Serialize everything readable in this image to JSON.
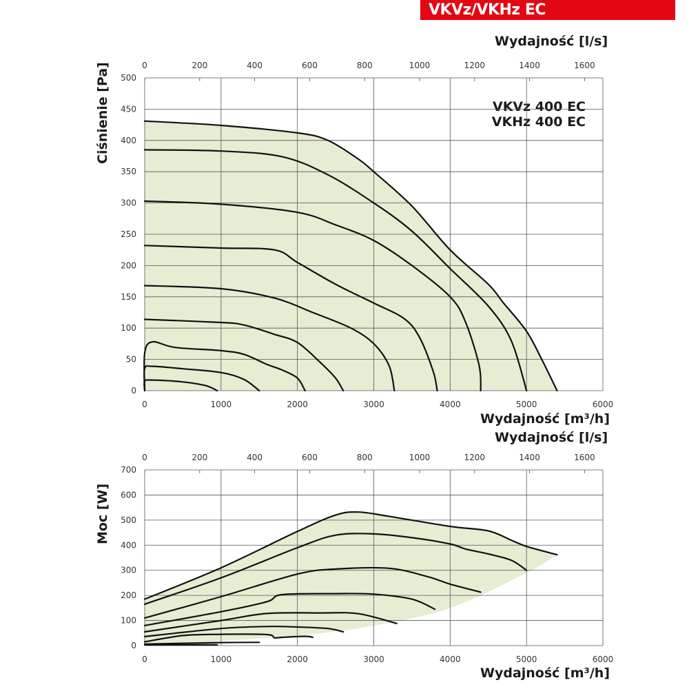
{
  "header": {
    "title": "VKVz/VKHz EC",
    "color": "#e30613"
  },
  "chart_data": [
    {
      "type": "line",
      "title": "VKVz 400 EC / VKHz 400 EC",
      "legend": [
        "VKVz 400 EC",
        "VKHz 400 EC"
      ],
      "xlabel": "Wydajność [m³/h]",
      "x2label": "Wydajność [l/s]",
      "ylabel": "Ciśnienie [Pa]",
      "xlim": [
        0,
        6000
      ],
      "ylim": [
        0,
        500
      ],
      "xticks": [
        0,
        1000,
        2000,
        3000,
        4000,
        5000,
        6000
      ],
      "x2ticks": [
        0,
        200,
        400,
        600,
        800,
        1000,
        1200,
        1400,
        1600
      ],
      "yticks": [
        0,
        50,
        100,
        150,
        200,
        250,
        300,
        350,
        400,
        450,
        500
      ],
      "grid": true,
      "fill_color": "#e5edd3",
      "series": [
        {
          "name": "curve-1",
          "points": [
            [
              0,
              431
            ],
            [
              1000,
              424
            ],
            [
              2000,
              412
            ],
            [
              2400,
              400
            ],
            [
              2800,
              370
            ],
            [
              3000,
              350
            ],
            [
              3500,
              295
            ],
            [
              4000,
              225
            ],
            [
              4500,
              170
            ],
            [
              4700,
              140
            ],
            [
              5000,
              95
            ],
            [
              5200,
              50
            ],
            [
              5400,
              0
            ]
          ]
        },
        {
          "name": "curve-2",
          "points": [
            [
              0,
              385
            ],
            [
              1000,
              383
            ],
            [
              1800,
              374
            ],
            [
              2400,
              345
            ],
            [
              3000,
              300
            ],
            [
              3500,
              255
            ],
            [
              4000,
              195
            ],
            [
              4500,
              135
            ],
            [
              4800,
              80
            ],
            [
              5000,
              0
            ]
          ]
        },
        {
          "name": "curve-3",
          "points": [
            [
              0,
              303
            ],
            [
              1000,
              298
            ],
            [
              2000,
              285
            ],
            [
              2500,
              265
            ],
            [
              3000,
              240
            ],
            [
              3500,
              200
            ],
            [
              4000,
              150
            ],
            [
              4200,
              110
            ],
            [
              4380,
              40
            ],
            [
              4400,
              0
            ]
          ]
        },
        {
          "name": "curve-4",
          "points": [
            [
              0,
              232
            ],
            [
              1000,
              228
            ],
            [
              1700,
              225
            ],
            [
              2000,
              205
            ],
            [
              2500,
              170
            ],
            [
              3000,
              140
            ],
            [
              3400,
              115
            ],
            [
              3600,
              85
            ],
            [
              3780,
              30
            ],
            [
              3830,
              0
            ]
          ]
        },
        {
          "name": "curve-5",
          "points": [
            [
              0,
              168
            ],
            [
              1000,
              163
            ],
            [
              1700,
              148
            ],
            [
              2200,
              125
            ],
            [
              2700,
              100
            ],
            [
              3000,
              75
            ],
            [
              3200,
              40
            ],
            [
              3270,
              0
            ]
          ]
        },
        {
          "name": "curve-6",
          "points": [
            [
              0,
              114
            ],
            [
              1000,
              109
            ],
            [
              1300,
              105
            ],
            [
              1700,
              90
            ],
            [
              2000,
              77
            ],
            [
              2300,
              45
            ],
            [
              2500,
              20
            ],
            [
              2600,
              0
            ]
          ]
        },
        {
          "name": "curve-7",
          "points": [
            [
              0,
              0
            ],
            [
              0,
              60
            ],
            [
              100,
              78
            ],
            [
              400,
              69
            ],
            [
              1000,
              64
            ],
            [
              1300,
              58
            ],
            [
              1600,
              42
            ],
            [
              1800,
              33
            ],
            [
              2000,
              20
            ],
            [
              2100,
              0
            ]
          ]
        },
        {
          "name": "curve-8",
          "points": [
            [
              0,
              0
            ],
            [
              0,
              35
            ],
            [
              100,
              39
            ],
            [
              500,
              35
            ],
            [
              1000,
              29
            ],
            [
              1300,
              18
            ],
            [
              1500,
              0
            ]
          ]
        },
        {
          "name": "curve-9",
          "points": [
            [
              0,
              0
            ],
            [
              0,
              15
            ],
            [
              100,
              17
            ],
            [
              500,
              14
            ],
            [
              800,
              8
            ],
            [
              950,
              0
            ]
          ]
        }
      ]
    },
    {
      "type": "line",
      "title": "",
      "xlabel": "Wydajność [m³/h]",
      "x2label": "Wydajność [l/s]",
      "ylabel": "Moc [W]",
      "xlim": [
        0,
        6000
      ],
      "ylim": [
        0,
        700
      ],
      "xticks": [
        0,
        1000,
        2000,
        3000,
        4000,
        5000,
        6000
      ],
      "x2ticks": [
        0,
        200,
        400,
        600,
        800,
        1000,
        1200,
        1400,
        1600
      ],
      "yticks": [
        0,
        100,
        200,
        300,
        400,
        500,
        600,
        700
      ],
      "grid": true,
      "fill_color": "#e5edd3",
      "series": [
        {
          "name": "power-1",
          "points": [
            [
              0,
              185
            ],
            [
              1000,
              310
            ],
            [
              2000,
              455
            ],
            [
              2500,
              520
            ],
            [
              2800,
              532
            ],
            [
              3200,
              515
            ],
            [
              4000,
              475
            ],
            [
              4500,
              457
            ],
            [
              4800,
              420
            ],
            [
              5000,
              395
            ],
            [
              5400,
              362
            ]
          ]
        },
        {
          "name": "power-2",
          "points": [
            [
              0,
              165
            ],
            [
              1000,
              270
            ],
            [
              2000,
              390
            ],
            [
              2500,
              440
            ],
            [
              3000,
              445
            ],
            [
              3500,
              430
            ],
            [
              4000,
              405
            ],
            [
              4200,
              385
            ],
            [
              4500,
              365
            ],
            [
              4800,
              340
            ],
            [
              5000,
              300
            ]
          ]
        },
        {
          "name": "power-3",
          "points": [
            [
              0,
              110
            ],
            [
              1000,
              195
            ],
            [
              2000,
              285
            ],
            [
              2500,
              305
            ],
            [
              3200,
              308
            ],
            [
              3700,
              275
            ],
            [
              4000,
              245
            ],
            [
              4400,
              213
            ]
          ]
        },
        {
          "name": "power-4",
          "points": [
            [
              0,
              80
            ],
            [
              1000,
              135
            ],
            [
              1600,
              175
            ],
            [
              1800,
              203
            ],
            [
              2500,
              207
            ],
            [
              3000,
              205
            ],
            [
              3500,
              185
            ],
            [
              3800,
              145
            ]
          ]
        },
        {
          "name": "power-5",
          "points": [
            [
              0,
              55
            ],
            [
              1000,
              100
            ],
            [
              1600,
              128
            ],
            [
              2300,
              130
            ],
            [
              2800,
              127
            ],
            [
              3300,
              88
            ]
          ]
        },
        {
          "name": "power-6",
          "points": [
            [
              0,
              36
            ],
            [
              1000,
              68
            ],
            [
              1600,
              76
            ],
            [
              2000,
              74
            ],
            [
              2400,
              68
            ],
            [
              2600,
              55
            ]
          ]
        },
        {
          "name": "power-7",
          "points": [
            [
              0,
              15
            ],
            [
              500,
              40
            ],
            [
              1000,
              45
            ],
            [
              1600,
              44
            ],
            [
              1700,
              31
            ],
            [
              1800,
              33
            ],
            [
              2100,
              37
            ],
            [
              2200,
              33
            ]
          ]
        },
        {
          "name": "power-8",
          "points": [
            [
              0,
              6
            ],
            [
              1000,
              12
            ],
            [
              1500,
              13
            ]
          ]
        },
        {
          "name": "power-9",
          "points": [
            [
              0,
              3
            ],
            [
              950,
              3
            ]
          ]
        }
      ],
      "fill_lower_boundary": [
        [
          0,
          0
        ],
        [
          2000,
          40
        ],
        [
          3000,
          80
        ],
        [
          4000,
          150
        ],
        [
          5000,
          290
        ],
        [
          5400,
          362
        ]
      ]
    }
  ],
  "labels": {
    "top_ls": "Wydajność [l/s]",
    "upper_ylabel": "Ciśnienie [Pa]",
    "upper_xlabel": "Wydajność [m³/h]",
    "legend_line1": "VKVz 400 EC",
    "legend_line2": "VKHz 400 EC",
    "lower_ls": "Wydajność [l/s]",
    "lower_ylabel": "Moc [W]",
    "lower_xlabel": "Wydajność [m³/h]"
  }
}
